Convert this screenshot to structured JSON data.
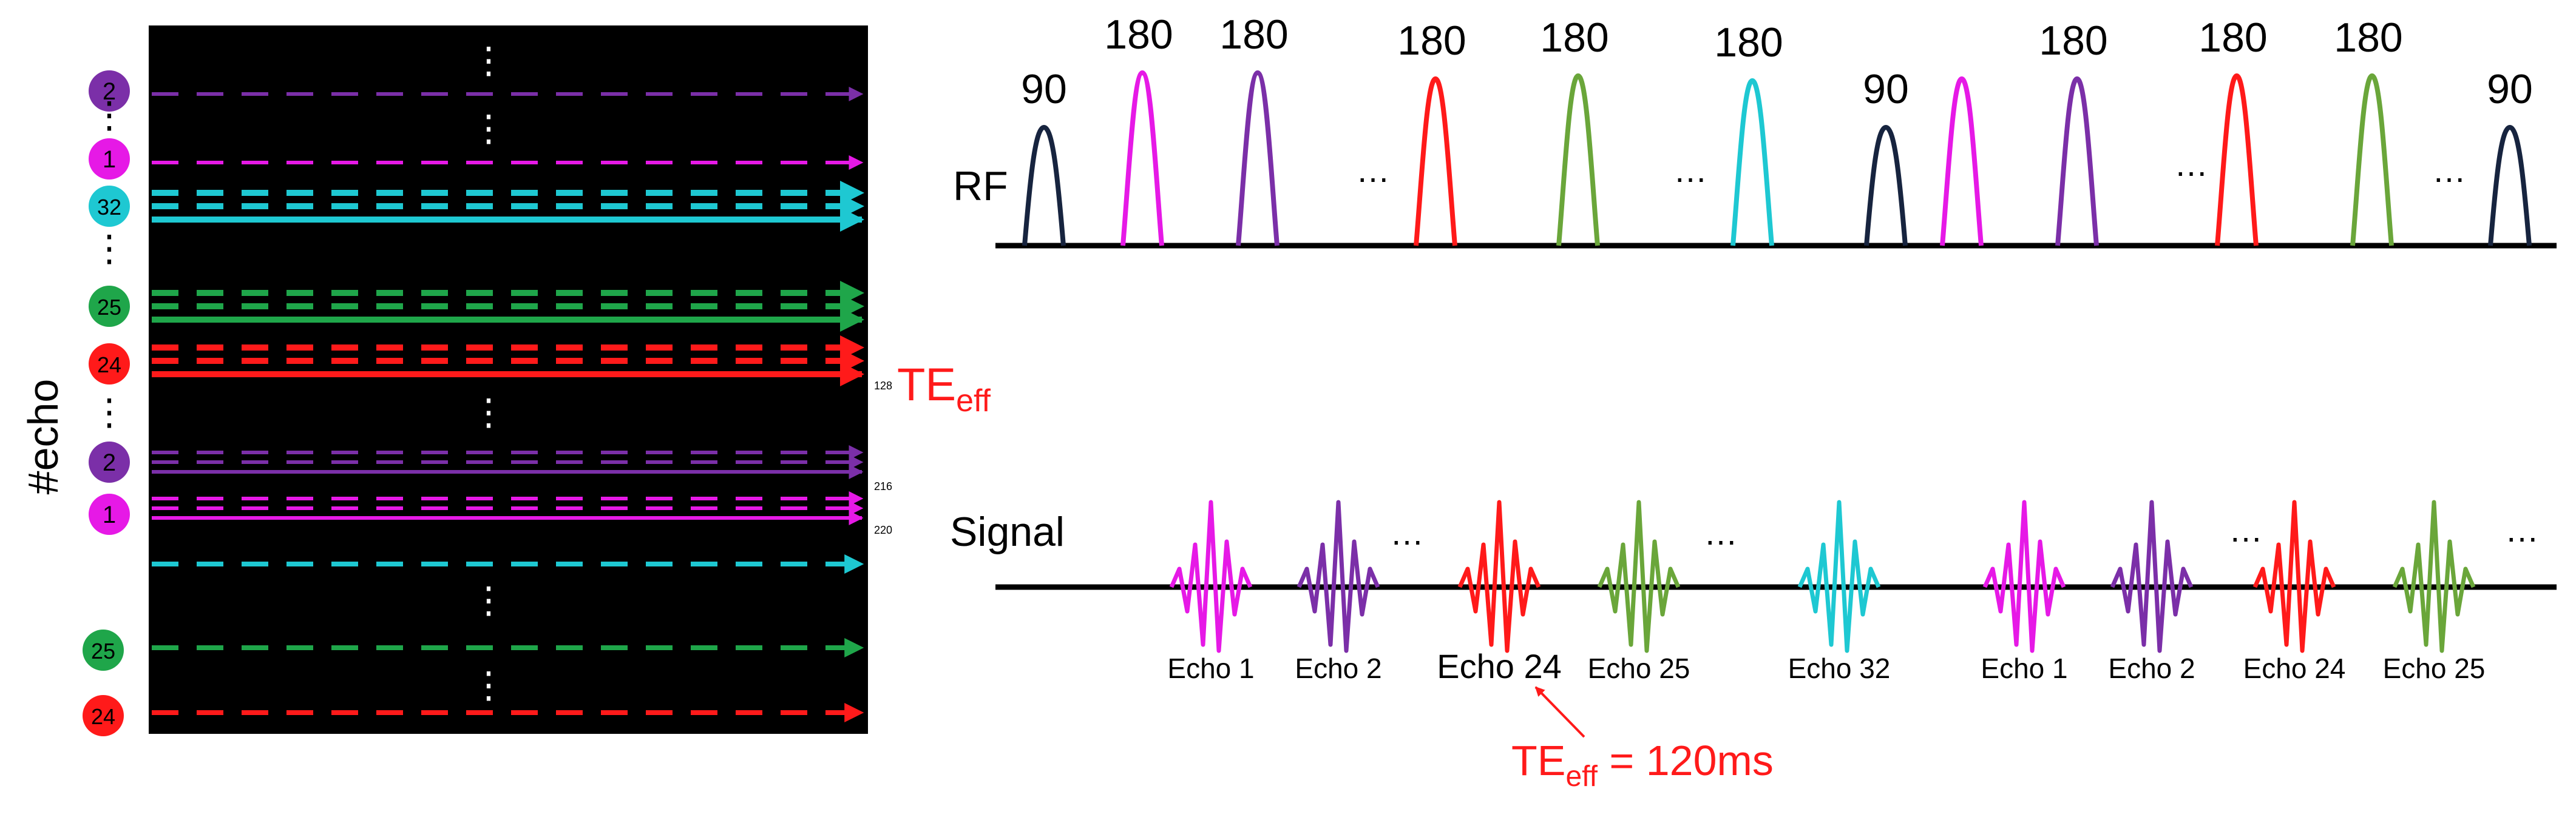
{
  "colors": {
    "background": "#000000",
    "navy": "#17243f",
    "magenta": "#e619e6",
    "purple": "#7b2fa8",
    "red": "#ff1a1a",
    "green": "#6aa63a",
    "cyan": "#1ec8d2",
    "darkgreen": "#1fa64a"
  },
  "kspace": {
    "axis_label": "#echo",
    "ellipsis": "⋮",
    "row_numbers": {
      "n128": "128",
      "n216": "216",
      "n220": "220"
    },
    "te_label": "TE",
    "te_sub": "eff",
    "rows": [
      {
        "badge": "2",
        "color": "purple",
        "style": "dashed",
        "lines": 1
      },
      {
        "badge": "1",
        "color": "magenta",
        "style": "dashed",
        "lines": 1
      },
      {
        "badge": "32",
        "color": "cyan",
        "style": "dashed-solid",
        "lines": 3
      },
      {
        "badge": "25",
        "color": "darkgreen",
        "style": "dashed-solid",
        "lines": 3
      },
      {
        "badge": "24",
        "color": "red",
        "style": "dashed-solid",
        "lines": 3
      },
      {
        "badge": "2",
        "color": "purple",
        "style": "dashed-solid",
        "lines": 3
      },
      {
        "badge": "1",
        "color": "magenta",
        "style": "dashed-solid",
        "lines": 3
      },
      {
        "badge": "",
        "color": "cyan",
        "style": "dashed",
        "lines": 1
      },
      {
        "badge": "25",
        "color": "darkgreen",
        "style": "dashed",
        "lines": 1
      },
      {
        "badge": "24",
        "color": "red",
        "style": "dashed",
        "lines": 1
      }
    ]
  },
  "rf": {
    "label": "RF",
    "ellipsis": "…",
    "pulses": [
      {
        "angle": "90",
        "color": "navy"
      },
      {
        "angle": "180",
        "color": "magenta"
      },
      {
        "angle": "180",
        "color": "purple"
      },
      {
        "angle": "180",
        "color": "red"
      },
      {
        "angle": "180",
        "color": "green"
      },
      {
        "angle": "180",
        "color": "cyan"
      },
      {
        "angle": "90",
        "color": "navy"
      },
      {
        "angle": "",
        "color": "magenta"
      },
      {
        "angle": "180",
        "color": "purple"
      },
      {
        "angle": "180",
        "color": "red"
      },
      {
        "angle": "180",
        "color": "green"
      },
      {
        "angle": "90",
        "color": "navy"
      }
    ]
  },
  "signal": {
    "label": "Signal",
    "ellipsis": "…",
    "echoes": [
      {
        "label": "Echo 1",
        "color": "magenta"
      },
      {
        "label": "Echo 2",
        "color": "purple"
      },
      {
        "label": "Echo 24",
        "color": "red"
      },
      {
        "label": "Echo 25",
        "color": "green"
      },
      {
        "label": "Echo 32",
        "color": "cyan"
      },
      {
        "label": "Echo 1",
        "color": "magenta"
      },
      {
        "label": "Echo 2",
        "color": "purple"
      },
      {
        "label": "Echo 24",
        "color": "red"
      },
      {
        "label": "Echo 25",
        "color": "green"
      }
    ],
    "te_annotation": {
      "prefix": "TE",
      "sub": "eff",
      "suffix": " = 120ms"
    }
  }
}
